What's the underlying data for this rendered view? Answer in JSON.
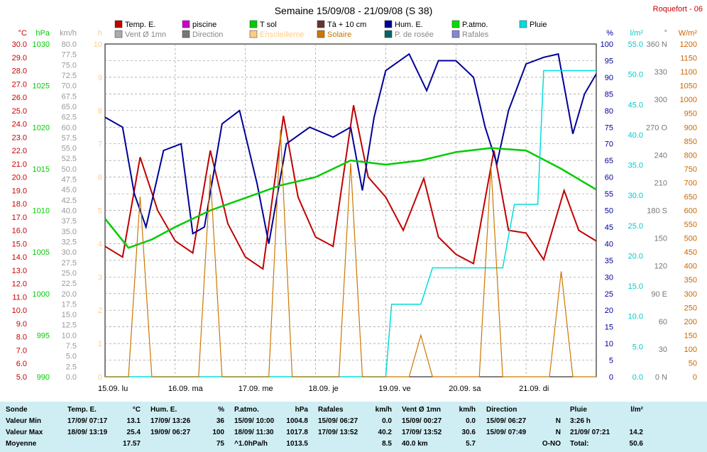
{
  "title": "Semaine 15/09/08 - 21/09/08 (S 38)",
  "station": "Roquefort - 06",
  "legend": [
    {
      "label": "Temp. E.",
      "color": "#c00000"
    },
    {
      "label": "piscine",
      "color": "#cc00cc"
    },
    {
      "label": "T sol",
      "color": "#00cc00"
    },
    {
      "label": "Tà + 10 cm",
      "color": "#663333"
    },
    {
      "label": "Hum. E.",
      "color": "#000099"
    },
    {
      "label": "P.atmo.",
      "color": "#00dd00"
    },
    {
      "label": "Pluie",
      "color": "#00dddd"
    },
    {
      "label": "Vent Ø 1mn",
      "color": "#aaaaaa"
    },
    {
      "label": "Direction",
      "color": "#777777"
    },
    {
      "label": "Ensoleilleme",
      "color": "#ffcc88"
    },
    {
      "label": "Solaire",
      "color": "#cc7700"
    },
    {
      "label": "P. de rosée",
      "color": "#006666"
    },
    {
      "label": "Rafales",
      "color": "#8888cc"
    }
  ],
  "axes": {
    "temp": {
      "unit": "°C",
      "color": "#cc0000",
      "ticks": [
        "30.0",
        "29.0",
        "28.0",
        "27.0",
        "26.0",
        "25.0",
        "24.0",
        "23.0",
        "22.0",
        "21.0",
        "20.0",
        "19.0",
        "18.0",
        "17.0",
        "16.0",
        "15.0",
        "14.0",
        "13.0",
        "12.0",
        "11.0",
        "10.0",
        "9.0",
        "8.0",
        "7.0",
        "6.0",
        "5.0"
      ]
    },
    "press": {
      "unit": "hPa",
      "color": "#00cc00",
      "ticks": [
        "1030",
        "1025",
        "1020",
        "1015",
        "1010",
        "1005",
        "1000",
        "995",
        "990"
      ]
    },
    "wind": {
      "unit": "km/h",
      "color": "#999999",
      "ticks": [
        "80.0",
        "77.5",
        "75.0",
        "72.5",
        "70.0",
        "67.5",
        "65.0",
        "62.5",
        "60.0",
        "57.5",
        "55.0",
        "52.5",
        "50.0",
        "47.5",
        "45.0",
        "42.5",
        "40.0",
        "37.5",
        "35.0",
        "32.5",
        "30.0",
        "27.5",
        "25.0",
        "22.5",
        "20.0",
        "17.5",
        "15.0",
        "12.5",
        "10.0",
        "7.5",
        "5.0",
        "2.5",
        "0.0"
      ]
    },
    "sun": {
      "unit": "h",
      "color": "#ffcc88",
      "ticks": [
        "10",
        "9",
        "8",
        "7",
        "6",
        "5",
        "4",
        "3",
        "2",
        "1",
        "0"
      ]
    },
    "hum": {
      "unit": "%",
      "color": "#000099",
      "ticks": [
        "100",
        "95",
        "90",
        "85",
        "80",
        "75",
        "70",
        "65",
        "60",
        "55",
        "50",
        "45",
        "40",
        "35",
        "30",
        "25",
        "20",
        "15",
        "10",
        "5",
        "0"
      ]
    },
    "rain": {
      "unit": "l/m²",
      "color": "#00cccc",
      "ticks": [
        "55.0",
        "50.0",
        "45.0",
        "40.0",
        "35.0",
        "30.0",
        "25.0",
        "20.0",
        "15.0",
        "10.0",
        "5.0",
        "0.0"
      ]
    },
    "dir": {
      "unit": "°",
      "color": "#777777",
      "ticks": [
        "360 N",
        "330",
        "300",
        "270 O",
        "240",
        "210",
        "180 S",
        "150",
        "120",
        "90 E",
        "60",
        "30",
        "0 N"
      ]
    },
    "solar": {
      "unit": "W/m²",
      "color": "#cc6600",
      "ticks": [
        "1200",
        "1150",
        "1100",
        "1050",
        "1000",
        "950",
        "900",
        "850",
        "800",
        "750",
        "700",
        "650",
        "600",
        "550",
        "500",
        "450",
        "400",
        "350",
        "300",
        "250",
        "200",
        "150",
        "100",
        "50",
        "0"
      ]
    }
  },
  "days": [
    "15.09. lu",
    "16.09. ma",
    "17.09. me",
    "18.09. je",
    "19.09. ve",
    "20.09. sa",
    "21.09. di"
  ],
  "chart_data": {
    "type": "line",
    "title": "Semaine 15/09/08 - 21/09/08 (S 38)",
    "x": "hours since 15/09 00:00 (0-168)",
    "series": [
      {
        "name": "Temp. E.",
        "unit": "°C",
        "points": [
          [
            0,
            14.8
          ],
          [
            6,
            14.0
          ],
          [
            12,
            21.5
          ],
          [
            18,
            17.5
          ],
          [
            24,
            15.2
          ],
          [
            30,
            14.3
          ],
          [
            36,
            22.0
          ],
          [
            42,
            16.5
          ],
          [
            48,
            14.0
          ],
          [
            54,
            13.1
          ],
          [
            61,
            24.6
          ],
          [
            66,
            18.5
          ],
          [
            72,
            15.5
          ],
          [
            78,
            14.8
          ],
          [
            85,
            25.4
          ],
          [
            90,
            20.0
          ],
          [
            96,
            18.5
          ],
          [
            102,
            16.0
          ],
          [
            109,
            19.9
          ],
          [
            114,
            15.5
          ],
          [
            120,
            14.2
          ],
          [
            126,
            13.5
          ],
          [
            133,
            22.0
          ],
          [
            138,
            16.0
          ],
          [
            144,
            15.8
          ],
          [
            150,
            13.8
          ],
          [
            157,
            19.0
          ],
          [
            162,
            16.0
          ],
          [
            168,
            15.2
          ]
        ]
      },
      {
        "name": "Hum. E.",
        "unit": "%",
        "points": [
          [
            0,
            78
          ],
          [
            6,
            75
          ],
          [
            10,
            55
          ],
          [
            14,
            45
          ],
          [
            20,
            68
          ],
          [
            26,
            70
          ],
          [
            30,
            43
          ],
          [
            34,
            45
          ],
          [
            40,
            76
          ],
          [
            46,
            80
          ],
          [
            52,
            58
          ],
          [
            56,
            40
          ],
          [
            62,
            70
          ],
          [
            70,
            75
          ],
          [
            78,
            72
          ],
          [
            84,
            75
          ],
          [
            88,
            56
          ],
          [
            92,
            78
          ],
          [
            96,
            92
          ],
          [
            104,
            97
          ],
          [
            110,
            86
          ],
          [
            114,
            95
          ],
          [
            120,
            95
          ],
          [
            126,
            90
          ],
          [
            130,
            75
          ],
          [
            134,
            64
          ],
          [
            138,
            80
          ],
          [
            144,
            94
          ],
          [
            150,
            96
          ],
          [
            155,
            97
          ],
          [
            160,
            73
          ],
          [
            164,
            85
          ],
          [
            168,
            91
          ]
        ]
      },
      {
        "name": "P.atmo.",
        "unit": "hPa",
        "points": [
          [
            0,
            1009
          ],
          [
            8,
            1005.5
          ],
          [
            16,
            1006.5
          ],
          [
            24,
            1008
          ],
          [
            36,
            1010
          ],
          [
            48,
            1011.5
          ],
          [
            60,
            1013
          ],
          [
            72,
            1014
          ],
          [
            84,
            1016
          ],
          [
            96,
            1015.5
          ],
          [
            108,
            1016
          ],
          [
            120,
            1017
          ],
          [
            132,
            1017.5
          ],
          [
            144,
            1017.2
          ],
          [
            156,
            1015
          ],
          [
            168,
            1012.5
          ]
        ]
      },
      {
        "name": "Pluie",
        "unit": "l/m²",
        "points": [
          [
            0,
            0
          ],
          [
            96,
            0
          ],
          [
            98,
            12
          ],
          [
            108,
            12
          ],
          [
            112,
            18
          ],
          [
            136,
            18
          ],
          [
            140,
            28.5
          ],
          [
            148,
            28.5
          ],
          [
            150,
            50.6
          ],
          [
            168,
            50.6
          ]
        ]
      },
      {
        "name": "Solaire",
        "unit": "W/m²",
        "points": [
          [
            0,
            0
          ],
          [
            8,
            0
          ],
          [
            12,
            650
          ],
          [
            16,
            0
          ],
          [
            32,
            0
          ],
          [
            36,
            730
          ],
          [
            40,
            0
          ],
          [
            56,
            0
          ],
          [
            60,
            890
          ],
          [
            64,
            0
          ],
          [
            80,
            0
          ],
          [
            84,
            770
          ],
          [
            88,
            0
          ],
          [
            104,
            0
          ],
          [
            108,
            150
          ],
          [
            112,
            0
          ],
          [
            128,
            0
          ],
          [
            132,
            760
          ],
          [
            136,
            0
          ],
          [
            152,
            0
          ],
          [
            156,
            380
          ],
          [
            160,
            0
          ],
          [
            168,
            0
          ]
        ]
      }
    ],
    "ylims": {
      "temp": [
        5,
        30
      ],
      "hum": [
        0,
        100
      ],
      "press": [
        990,
        1030
      ],
      "rain": [
        0,
        55
      ],
      "solar": [
        0,
        1200
      ],
      "wind": [
        0,
        80
      ]
    }
  },
  "stats": {
    "headers": {
      "sonde": "Sonde",
      "temp": "Temp. E.",
      "temp_unit": "°C",
      "hum": "Hum. E.",
      "hum_unit": "%",
      "press": "P.atmo.",
      "press_unit": "hPa",
      "gust": "Rafales",
      "gust_unit": "km/h",
      "wind": "Vent Ø 1mn",
      "wind_unit": "km/h",
      "dir": "Direction",
      "rain": "Pluie",
      "rain_unit": "l/m²"
    },
    "rows": [
      {
        "label": "Valeur Min",
        "temp_t": "17/09/  07:17",
        "temp_v": "13.1",
        "hum_t": "17/09/  13:26",
        "hum_v": "36",
        "press_t": "15/09/  10:00",
        "press_v": "1004.8",
        "gust_t": "15/09/  06:27",
        "gust_v": "0.0",
        "wind_t": "15/09/  00:27",
        "wind_v": "0.0",
        "dir_t": "15/09/  06:27",
        "dir_v": "N",
        "rain_t": "3:26 h",
        "rain_v": ""
      },
      {
        "label": "Valeur Max",
        "temp_t": "18/09/  13:19",
        "temp_v": "25.4",
        "hum_t": "19/09/  06:27",
        "hum_v": "100",
        "press_t": "18/09/  11:30",
        "press_v": "1017.8",
        "gust_t": "17/09/  13:52",
        "gust_v": "40.2",
        "wind_t": "17/09/  13:52",
        "wind_v": "30.6",
        "dir_t": "15/09/  07:49",
        "dir_v": "N",
        "rain_t": "21/09/  07:21",
        "rain_v": "14.2"
      },
      {
        "label": "Moyenne",
        "temp_t": "",
        "temp_v": "17.57",
        "hum_t": "",
        "hum_v": "75",
        "press_t": "^1.0hPa/h",
        "press_v": "1013.5",
        "gust_t": "",
        "gust_v": "8.5",
        "wind_t": "40.0 km",
        "wind_v": "5.7",
        "dir_t": "",
        "dir_v": "O-NO",
        "rain_t": "Total:",
        "rain_v": "50.6"
      }
    ]
  }
}
